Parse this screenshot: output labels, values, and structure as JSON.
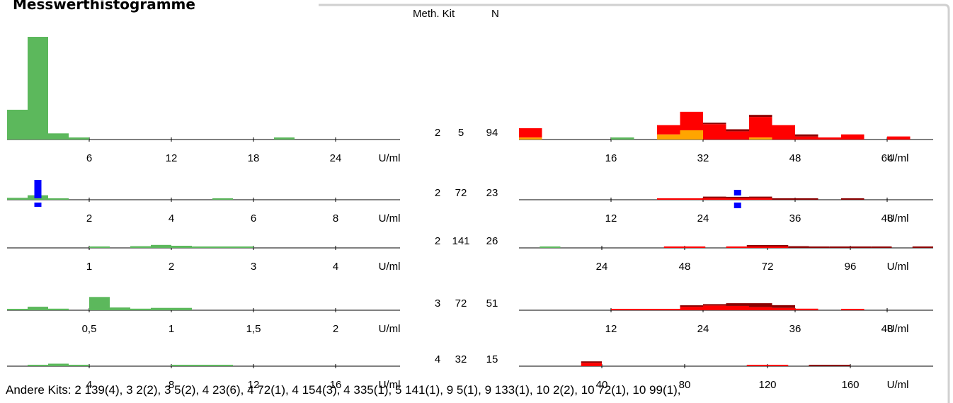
{
  "panel_title": "Messwerthistogramme",
  "header": {
    "meth_kit": "Meth. Kit",
    "n": "N"
  },
  "footer": "Andere Kits: 2 139(4), 3 2(2), 3 5(2), 4 23(6), 4 72(1), 4 154(3), 4 335(1), 5 141(1), 9 5(1), 9 133(1), 10 2(2), 10 72(1), 10 99(1),",
  "colors": {
    "green": "#5cb85c",
    "red": "#ff0000",
    "darkred": "#8b0000",
    "orange": "#ffa500",
    "blue": "#0000ff",
    "frame": "#d0d0d0"
  },
  "chart_data": [
    {
      "type": "bar",
      "meth": "2",
      "kit": "5",
      "n": "94",
      "unit": "U/ml",
      "left": {
        "xlim": [
          0,
          30
        ],
        "ticks": [
          6,
          12,
          18,
          24
        ],
        "bars": [
          {
            "x0": 0,
            "x1": 1.5,
            "h": 0.29
          },
          {
            "x0": 1.5,
            "x1": 3,
            "h": 1.0
          },
          {
            "x0": 3,
            "x1": 4.5,
            "h": 0.06
          },
          {
            "x0": 4.5,
            "x1": 6,
            "h": 0.02
          },
          {
            "x0": 19.5,
            "x1": 21,
            "h": 0.02
          }
        ]
      },
      "right": {
        "xlim": [
          0,
          72
        ],
        "ticks": [
          16,
          32,
          48,
          64
        ],
        "bars": [
          {
            "x0": 0,
            "x1": 4,
            "segs": [
              [
                "orange",
                0.02
              ],
              [
                "red",
                0.09
              ]
            ]
          },
          {
            "x0": 16,
            "x1": 20,
            "segs": [
              [
                "green",
                0.02
              ]
            ]
          },
          {
            "x0": 24,
            "x1": 28,
            "segs": [
              [
                "orange",
                0.05
              ],
              [
                "red",
                0.09
              ]
            ]
          },
          {
            "x0": 28,
            "x1": 32,
            "segs": [
              [
                "orange",
                0.09
              ],
              [
                "red",
                0.18
              ]
            ]
          },
          {
            "x0": 32,
            "x1": 36,
            "segs": [
              [
                "red",
                0.15
              ],
              [
                "darkred",
                0.01
              ]
            ]
          },
          {
            "x0": 36,
            "x1": 40,
            "segs": [
              [
                "red",
                0.08
              ],
              [
                "darkred",
                0.02
              ]
            ]
          },
          {
            "x0": 40,
            "x1": 44,
            "segs": [
              [
                "orange",
                0.02
              ],
              [
                "red",
                0.2
              ],
              [
                "darkred",
                0.02
              ]
            ]
          },
          {
            "x0": 44,
            "x1": 48,
            "segs": [
              [
                "red",
                0.14
              ]
            ]
          },
          {
            "x0": 48,
            "x1": 52,
            "segs": [
              [
                "red",
                0.03
              ],
              [
                "darkred",
                0.02
              ]
            ]
          },
          {
            "x0": 52,
            "x1": 56,
            "segs": [
              [
                "red",
                0.02
              ]
            ]
          },
          {
            "x0": 56,
            "x1": 60,
            "segs": [
              [
                "red",
                0.05
              ]
            ]
          },
          {
            "x0": 64,
            "x1": 68,
            "segs": [
              [
                "red",
                0.03
              ]
            ]
          }
        ]
      }
    },
    {
      "type": "bar",
      "meth": "2",
      "kit": "72",
      "n": "23",
      "unit": "U/ml",
      "left": {
        "xlim": [
          0,
          10
        ],
        "ticks": [
          2,
          4,
          6,
          8
        ],
        "bars": [
          {
            "x0": 0,
            "x1": 0.5,
            "h": 0.09
          },
          {
            "x0": 0.5,
            "x1": 1,
            "h": 0.21
          },
          {
            "x0": 1,
            "x1": 1.5,
            "h": 0.05
          },
          {
            "x0": 5,
            "x1": 5.5,
            "h": 0.02
          }
        ],
        "marker": 0.75
      },
      "right": {
        "xlim": [
          0,
          54
        ],
        "ticks": [
          12,
          24,
          36,
          48
        ],
        "bars": [
          {
            "x0": 18,
            "x1": 21,
            "segs": [
              [
                "red",
                0.05
              ]
            ]
          },
          {
            "x0": 21,
            "x1": 24,
            "segs": [
              [
                "red",
                0.02
              ]
            ]
          },
          {
            "x0": 24,
            "x1": 27,
            "segs": [
              [
                "red",
                0.08
              ],
              [
                "darkred",
                0.02
              ]
            ]
          },
          {
            "x0": 27,
            "x1": 30,
            "segs": [
              [
                "red",
                0.07
              ],
              [
                "darkred",
                0.03
              ]
            ]
          },
          {
            "x0": 30,
            "x1": 33,
            "segs": [
              [
                "red",
                0.08
              ],
              [
                "darkred",
                0.02
              ]
            ]
          },
          {
            "x0": 33,
            "x1": 36,
            "segs": [
              [
                "darkred",
                0.03
              ]
            ]
          },
          {
            "x0": 36,
            "x1": 39,
            "segs": [
              [
                "darkred",
                0.02
              ]
            ]
          },
          {
            "x0": 42,
            "x1": 45,
            "segs": [
              [
                "darkred",
                0.02
              ]
            ]
          }
        ],
        "marker": 28.5
      }
    },
    {
      "type": "bar",
      "meth": "2",
      "kit": "141",
      "n": "26",
      "unit": "U/ml",
      "left": {
        "xlim": [
          0,
          5
        ],
        "ticks": [
          1,
          2,
          3,
          4
        ],
        "bars": [
          {
            "x0": 1,
            "x1": 1.25,
            "h": 0.03
          },
          {
            "x0": 1.5,
            "x1": 1.75,
            "h": 0.08
          },
          {
            "x0": 1.75,
            "x1": 2,
            "h": 0.14
          },
          {
            "x0": 2,
            "x1": 2.25,
            "h": 0.1
          },
          {
            "x0": 2.25,
            "x1": 2.5,
            "h": 0.02
          },
          {
            "x0": 2.5,
            "x1": 2.75,
            "h": 0.03
          },
          {
            "x0": 2.75,
            "x1": 3,
            "h": 0.02
          }
        ]
      },
      "right": {
        "xlim": [
          0,
          120
        ],
        "ticks": [
          24,
          48,
          72,
          96
        ],
        "bars": [
          {
            "x0": 6,
            "x1": 12,
            "segs": [
              [
                "green",
                0.02
              ]
            ]
          },
          {
            "x0": 42,
            "x1": 54,
            "segs": [
              [
                "red",
                0.02
              ]
            ]
          },
          {
            "x0": 60,
            "x1": 66,
            "segs": [
              [
                "red",
                0.02
              ]
            ]
          },
          {
            "x0": 66,
            "x1": 78,
            "segs": [
              [
                "red",
                0.02
              ],
              [
                "darkred",
                0.04
              ]
            ]
          },
          {
            "x0": 78,
            "x1": 84,
            "segs": [
              [
                "darkred",
                0.08
              ]
            ]
          },
          {
            "x0": 84,
            "x1": 90,
            "segs": [
              [
                "darkred",
                0.05
              ]
            ]
          },
          {
            "x0": 90,
            "x1": 96,
            "segs": [
              [
                "darkred",
                0.03
              ]
            ]
          },
          {
            "x0": 96,
            "x1": 102,
            "segs": [
              [
                "darkred",
                0.05
              ]
            ]
          },
          {
            "x0": 102,
            "x1": 108,
            "segs": [
              [
                "darkred",
                0.03
              ]
            ]
          },
          {
            "x0": 114,
            "x1": 120,
            "segs": [
              [
                "darkred",
                0.02
              ]
            ]
          }
        ]
      }
    },
    {
      "type": "bar",
      "meth": "3",
      "kit": "72",
      "n": "51",
      "unit": "U/ml",
      "left": {
        "xlim": [
          0,
          2.5
        ],
        "ticks": [
          0.5,
          1,
          1.5,
          2
        ],
        "tick_labels": [
          "0,5",
          "1",
          "1,5",
          "2"
        ],
        "bars": [
          {
            "x0": 0,
            "x1": 0.125,
            "h": 0.03
          },
          {
            "x0": 0.125,
            "x1": 0.25,
            "h": 0.09
          },
          {
            "x0": 0.25,
            "x1": 0.375,
            "h": 0.04
          },
          {
            "x0": 0.5,
            "x1": 0.625,
            "h": 0.34
          },
          {
            "x0": 0.625,
            "x1": 0.75,
            "h": 0.07
          },
          {
            "x0": 0.75,
            "x1": 0.875,
            "h": 0.04
          },
          {
            "x0": 0.875,
            "x1": 1.125,
            "h": 0.06
          }
        ]
      },
      "right": {
        "xlim": [
          0,
          54
        ],
        "ticks": [
          12,
          24,
          36,
          48
        ],
        "bars": [
          {
            "x0": 12,
            "x1": 18,
            "segs": [
              [
                "red",
                0.02
              ]
            ]
          },
          {
            "x0": 18,
            "x1": 21,
            "segs": [
              [
                "red",
                0.03
              ]
            ]
          },
          {
            "x0": 21,
            "x1": 24,
            "segs": [
              [
                "red",
                0.09
              ],
              [
                "darkred",
                0.02
              ]
            ]
          },
          {
            "x0": 24,
            "x1": 27,
            "segs": [
              [
                "red",
                0.12
              ],
              [
                "darkred",
                0.03
              ]
            ]
          },
          {
            "x0": 27,
            "x1": 30,
            "segs": [
              [
                "red",
                0.11
              ],
              [
                "darkred",
                0.07
              ]
            ]
          },
          {
            "x0": 30,
            "x1": 33,
            "segs": [
              [
                "red",
                0.08
              ],
              [
                "darkred",
                0.1
              ]
            ]
          },
          {
            "x0": 33,
            "x1": 36,
            "segs": [
              [
                "red",
                0.06
              ],
              [
                "darkred",
                0.07
              ]
            ]
          },
          {
            "x0": 36,
            "x1": 39,
            "segs": [
              [
                "red",
                0.04
              ]
            ]
          },
          {
            "x0": 42,
            "x1": 45,
            "segs": [
              [
                "red",
                0.02
              ]
            ]
          }
        ]
      }
    },
    {
      "type": "bar",
      "meth": "4",
      "kit": "32",
      "n": "15",
      "unit": "U/ml",
      "left": {
        "xlim": [
          0,
          20
        ],
        "ticks": [
          4,
          8,
          12,
          16
        ],
        "bars": [
          {
            "x0": 1,
            "x1": 2,
            "h": 0.04
          },
          {
            "x0": 2,
            "x1": 3,
            "h": 0.11
          },
          {
            "x0": 3,
            "x1": 4,
            "h": 0.03
          },
          {
            "x0": 8,
            "x1": 9,
            "h": 0.05
          },
          {
            "x0": 9,
            "x1": 11,
            "h": 0.02
          }
        ]
      },
      "right": {
        "xlim": [
          0,
          200
        ],
        "ticks": [
          40,
          80,
          120,
          160
        ],
        "bars": [
          {
            "x0": 30,
            "x1": 40,
            "segs": [
              [
                "red",
                0.15
              ],
              [
                "darkred",
                0.02
              ]
            ]
          },
          {
            "x0": 110,
            "x1": 130,
            "segs": [
              [
                "red",
                0.02
              ]
            ]
          },
          {
            "x0": 140,
            "x1": 160,
            "segs": [
              [
                "darkred",
                0.02
              ]
            ]
          }
        ]
      }
    }
  ]
}
